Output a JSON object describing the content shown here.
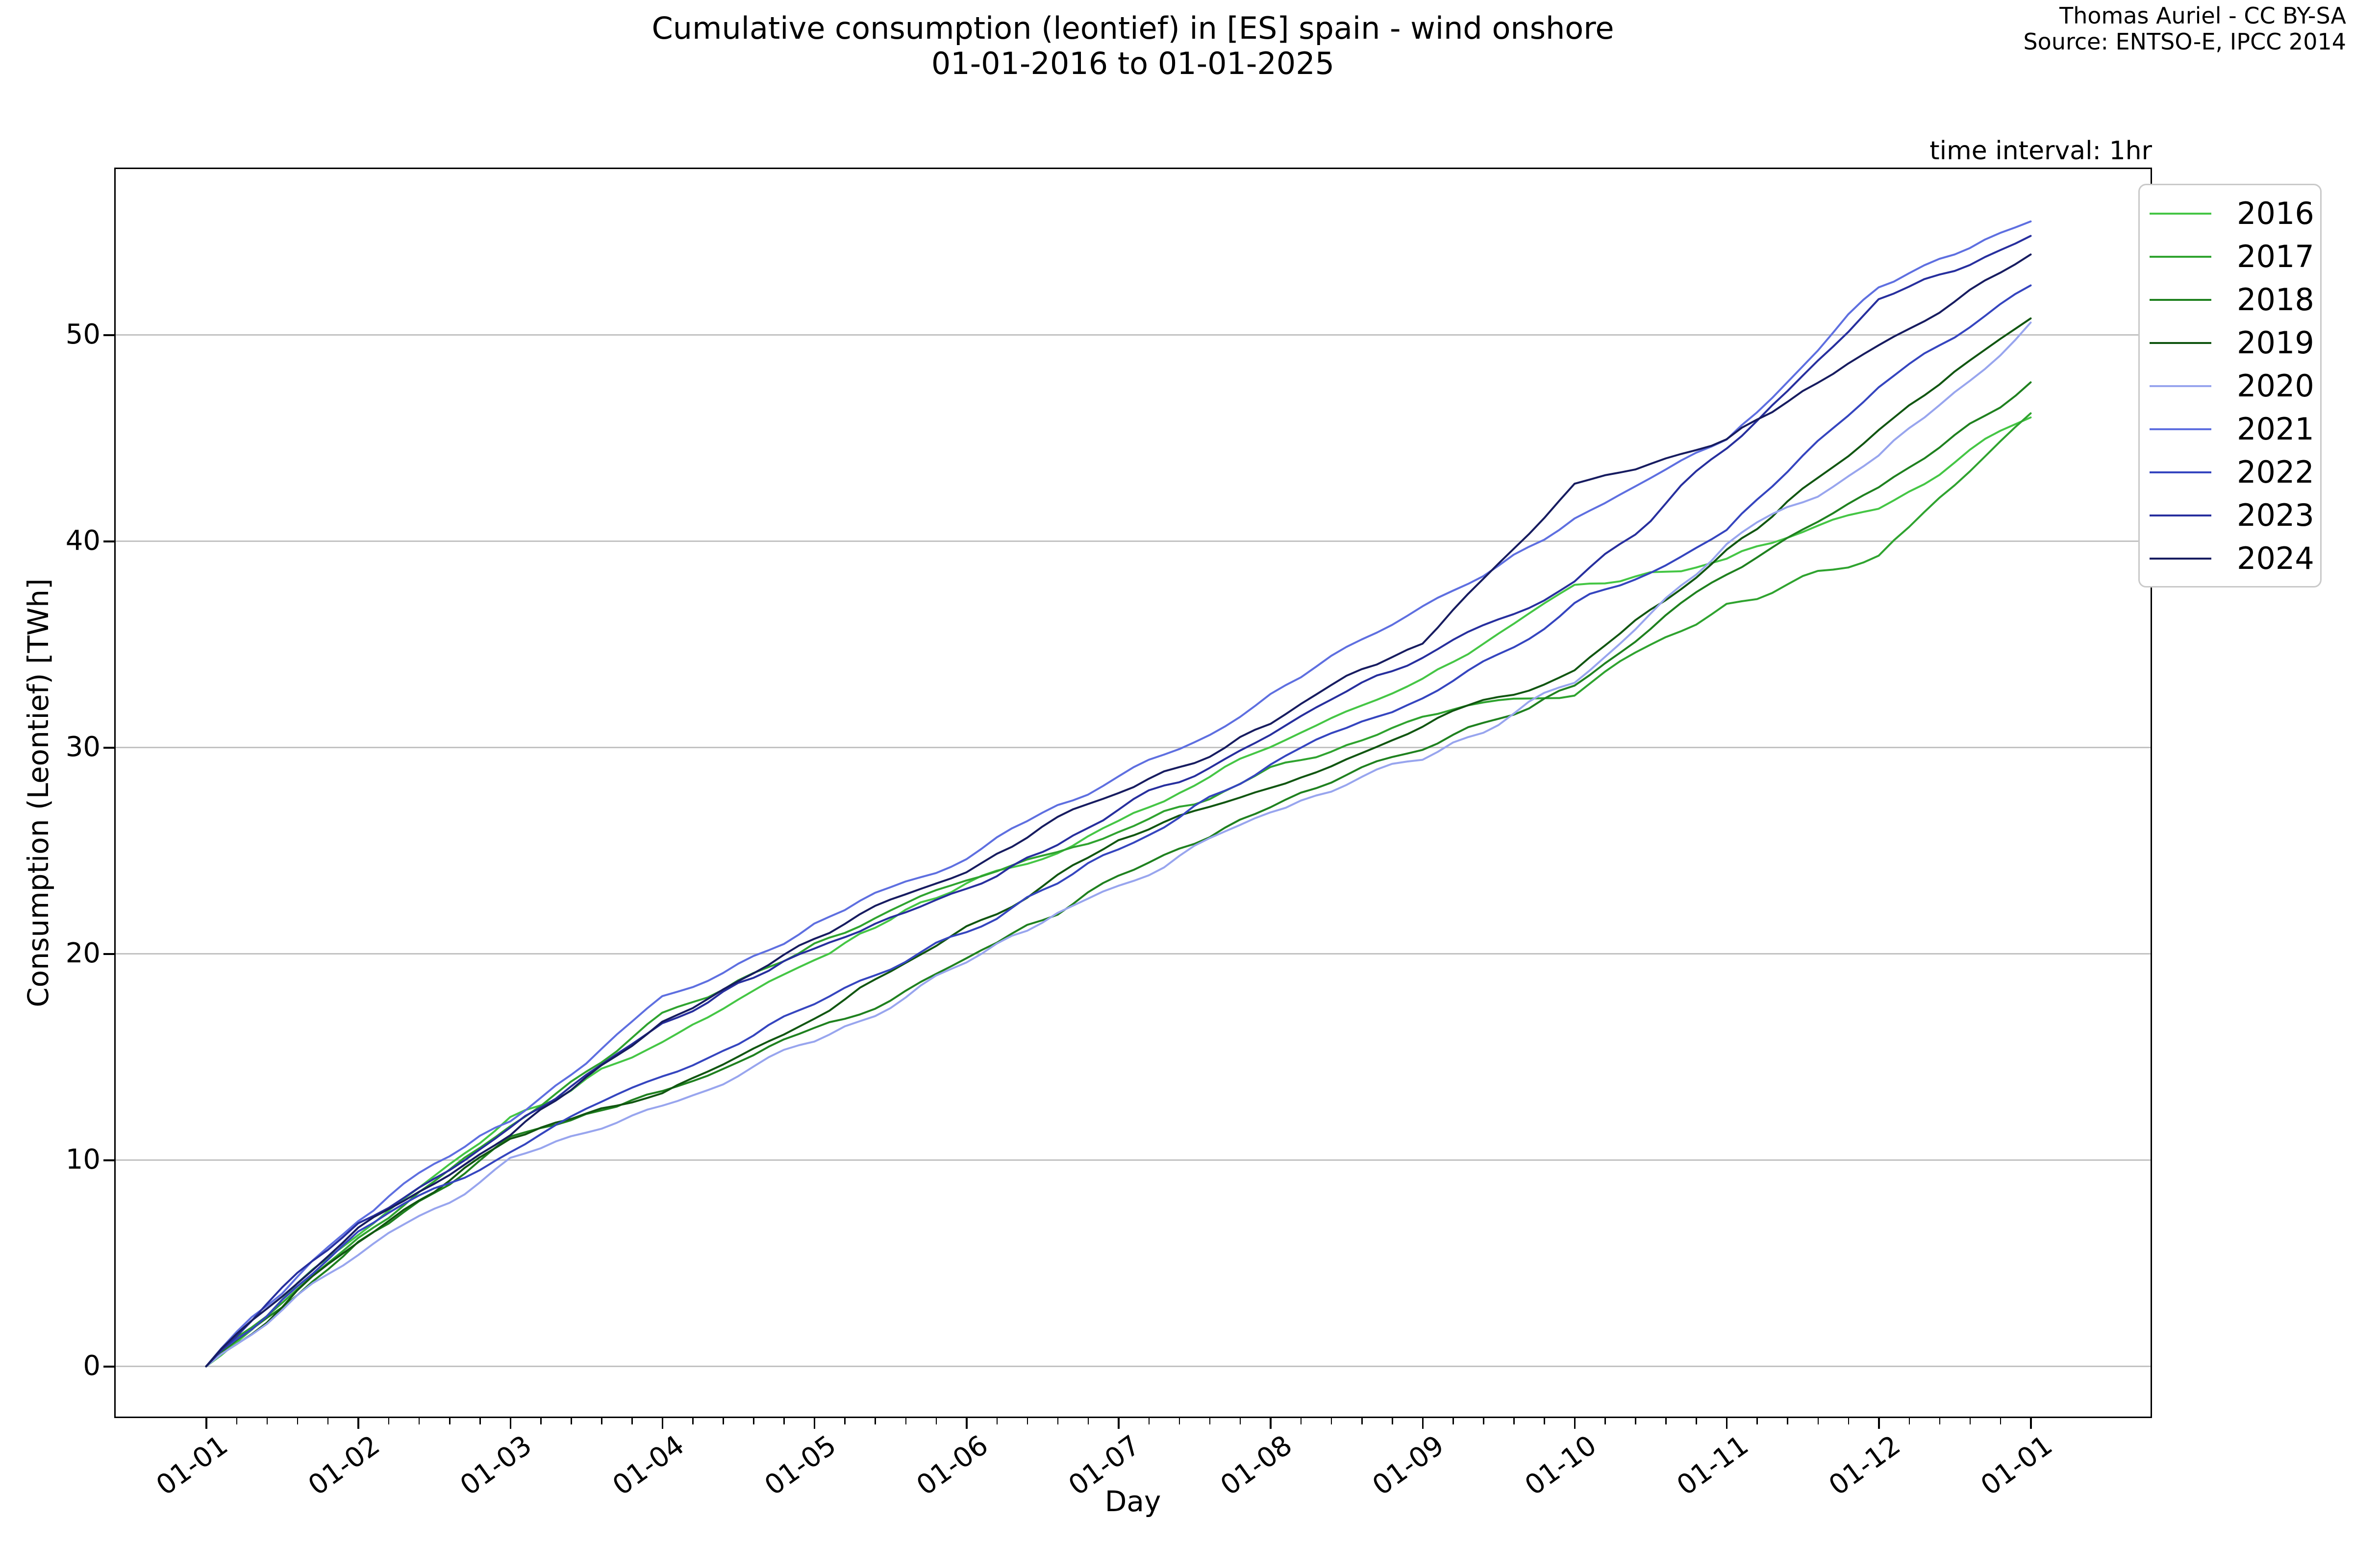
{
  "title": {
    "line1": "Cumulative consumption (leontief) in [ES] spain - wind onshore",
    "line2": "01-01-2016 to 01-01-2025"
  },
  "attribution": {
    "line1": "Thomas Auriel - CC BY-SA",
    "line2": "Source: ENTSO-E, IPCC 2014"
  },
  "annotation": "time interval: 1hr",
  "axes": {
    "xlabel": "Day",
    "ylabel": "Consumption (Leontief) [TWh]",
    "x_ticks": [
      "01-01",
      "01-02",
      "01-03",
      "01-04",
      "01-05",
      "01-06",
      "01-07",
      "01-08",
      "01-09",
      "01-10",
      "01-11",
      "01-12",
      "01-01"
    ],
    "y_ticks": [
      0,
      10,
      20,
      30,
      40,
      50
    ]
  },
  "chart_data": {
    "type": "line",
    "title": "Cumulative consumption (leontief) in [ES] spain - wind onshore 01-01-2016 to 01-01-2025",
    "xlabel": "Day",
    "ylabel": "Consumption (Leontief) [TWh]",
    "x_categories": [
      "01-01",
      "01-02",
      "01-03",
      "01-04",
      "01-05",
      "01-06",
      "01-07",
      "01-08",
      "01-09",
      "01-10",
      "01-11",
      "01-12",
      "01-01"
    ],
    "x_note": "cumulative TWh sampled at the start of each month; last point is 01-01 of the following year",
    "ylim": [
      -2.5,
      58.1
    ],
    "grid": "horizontal-only",
    "legend_position": "outside-upper-right",
    "series": [
      {
        "name": "2016",
        "color": "#45c645",
        "values": [
          0,
          6.4,
          12.1,
          16.0,
          19.8,
          23.3,
          26.6,
          30.0,
          33.4,
          37.9,
          39.1,
          41.7,
          46.0
        ]
      },
      {
        "name": "2017",
        "color": "#2fa32f",
        "values": [
          0,
          6.2,
          11.5,
          17.1,
          20.5,
          23.4,
          25.8,
          29.0,
          31.4,
          32.5,
          36.9,
          39.2,
          46.2
        ]
      },
      {
        "name": "2018",
        "color": "#1f811f",
        "values": [
          0,
          5.9,
          11.0,
          13.4,
          16.1,
          19.6,
          23.7,
          27.2,
          29.8,
          33.2,
          38.5,
          42.5,
          47.7
        ]
      },
      {
        "name": "2019",
        "color": "#115611",
        "values": [
          0,
          6.0,
          11.2,
          13.2,
          17.0,
          21.3,
          25.5,
          28.3,
          31.0,
          33.9,
          39.5,
          45.5,
          50.8
        ]
      },
      {
        "name": "2020",
        "color": "#98a5ee",
        "values": [
          0,
          5.3,
          10.0,
          12.6,
          15.8,
          19.5,
          23.5,
          27.0,
          29.5,
          33.0,
          39.8,
          44.0,
          50.6
        ]
      },
      {
        "name": "2021",
        "color": "#5e6fe0",
        "values": [
          0,
          7.3,
          11.9,
          17.9,
          21.5,
          24.8,
          28.5,
          32.6,
          36.7,
          41.1,
          44.6,
          52.4,
          55.5
        ]
      },
      {
        "name": "2022",
        "color": "#3545bf",
        "values": [
          0,
          6.6,
          10.5,
          14.3,
          17.6,
          21.0,
          25.1,
          29.3,
          32.6,
          36.9,
          40.4,
          47.4,
          52.4
        ]
      },
      {
        "name": "2023",
        "color": "#272f9e",
        "values": [
          0,
          6.9,
          11.3,
          16.7,
          20.3,
          23.2,
          26.9,
          30.4,
          34.3,
          38.1,
          44.3,
          51.8,
          54.8
        ]
      },
      {
        "name": "2024",
        "color": "#171c60",
        "values": [
          0,
          6.7,
          11.3,
          16.8,
          20.8,
          24.1,
          27.8,
          31.2,
          35.1,
          42.8,
          44.8,
          49.5,
          53.9
        ]
      }
    ]
  }
}
